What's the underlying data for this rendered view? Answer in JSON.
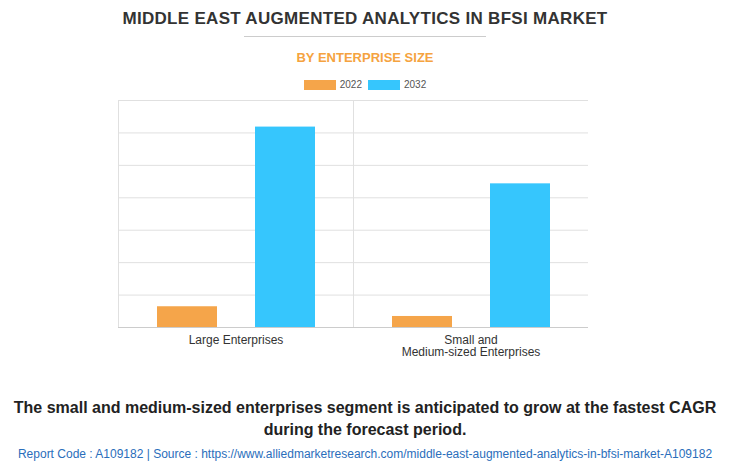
{
  "chart_data": {
    "type": "bar",
    "title": "MIDDLE EAST AUGMENTED ANALYTICS IN BFSI MARKET",
    "subtitle": "BY ENTERPRISE SIZE",
    "categories": [
      "Large Enterprises",
      "Small and\nMedium-sized Enterprises"
    ],
    "series": [
      {
        "name": "2022",
        "color": "#f5a54a",
        "values": [
          0.64,
          0.34
        ]
      },
      {
        "name": "2032",
        "color": "#36c6fd",
        "values": [
          6.18,
          4.43
        ]
      }
    ],
    "ylim": [
      0,
      7
    ],
    "yticks": [
      0,
      1,
      2,
      3,
      4,
      5,
      6,
      7
    ],
    "grid": true,
    "tick_labels": "x",
    "legend": "top",
    "caption": "The small and medium-sized enterprises segment is anticipated to grow at the fastest CAGR during the forecast period.",
    "source": "Report Code : A109182  |  Source : https://www.alliedmarketresearch.com/middle-east-augmented-analytics-in-bfsi-market-A109182"
  }
}
